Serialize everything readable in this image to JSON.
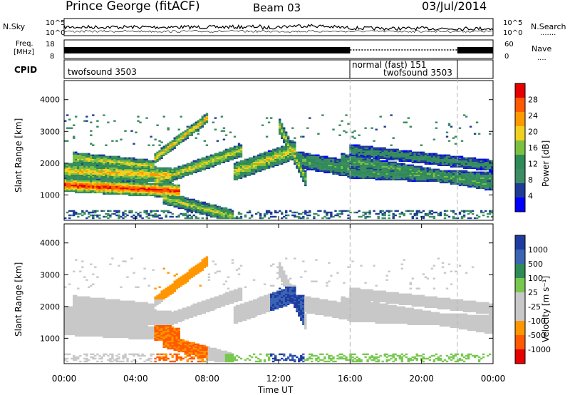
{
  "header": {
    "station": "Prince George (fitACF)",
    "beam": "Beam 03",
    "date": "03/Jul/2014"
  },
  "nsky_panel": {
    "left_label": "N.Sky",
    "right_label": "N.Search",
    "right_legend": ".......",
    "left_ticks": [
      "10^5",
      "10^0"
    ],
    "right_ticks": [
      "10^5",
      "10^0"
    ]
  },
  "freq_panel": {
    "left_label_1": "Freq.",
    "left_label_2": "[MHz]",
    "right_label": "Nave",
    "right_legend": "....",
    "left_ticks": [
      "18",
      "8"
    ],
    "right_ticks": [
      "60",
      "0"
    ]
  },
  "cpid_panel": {
    "label": "CPID",
    "segments": [
      {
        "label": "twofsound 3503",
        "row": 1
      },
      {
        "label": "normal (fast) 151",
        "row": 0
      },
      {
        "label": "twofsound 3503",
        "row": 1
      }
    ]
  },
  "x_axis": {
    "title": "Time UT",
    "ticks": [
      "00:00",
      "04:00",
      "08:00",
      "12:00",
      "16:00",
      "20:00",
      "00:00"
    ],
    "range_hours": [
      0,
      24
    ]
  },
  "colors": {
    "power_scale": [
      "#0000ff",
      "#1e3c96",
      "#3c8c64",
      "#2e8b57",
      "#7cc040",
      "#f0d020",
      "#ff9900",
      "#ff5a00",
      "#e60000"
    ],
    "velocity_scale": [
      "#e60000",
      "#ff5a00",
      "#ff9600",
      "#c8c8c8",
      "#c8c8c8",
      "#78c850",
      "#2e8b57",
      "#3c64b4",
      "#1e3ca0"
    ]
  },
  "chart_data": [
    {
      "type": "heatmap",
      "name": "power",
      "ylabel": "Slant Range [km]",
      "xlabel": "",
      "y_ticks": [
        1000,
        2000,
        3000,
        4000
      ],
      "ylim": [
        200,
        4600
      ],
      "xlim": [
        0,
        24
      ],
      "colorbar": {
        "label": "Power [dB]",
        "ticks": [
          "4",
          "8",
          "12",
          "16",
          "20",
          "24",
          "28"
        ],
        "range": [
          0,
          32
        ]
      }
    },
    {
      "type": "heatmap",
      "name": "velocity",
      "ylabel": "Slant Range [km]",
      "xlabel": "Time UT",
      "y_ticks": [
        1000,
        2000,
        3000,
        4000
      ],
      "ylim": [
        200,
        4600
      ],
      "xlim": [
        0,
        24
      ],
      "colorbar": {
        "label": "Velocity [m s⁻¹]",
        "ticks": [
          "1000",
          "500",
          "100",
          "25",
          "-25",
          "-100",
          "-500",
          "-1000"
        ]
      }
    }
  ]
}
